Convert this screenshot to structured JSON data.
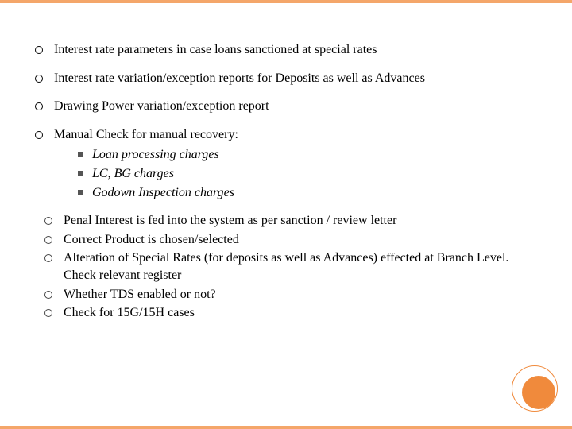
{
  "accent_color": "#f4a66a",
  "accent_fill": "#f08a3c",
  "main_items": [
    {
      "text": "Interest rate parameters in case loans sanctioned at special rates"
    },
    {
      "text": "Interest rate variation/exception reports for Deposits as well as Advances"
    },
    {
      "text": "Drawing Power variation/exception report"
    },
    {
      "text": "Manual Check for manual recovery:"
    }
  ],
  "sub_items": [
    {
      "text": "Loan processing charges"
    },
    {
      "text": "LC, BG charges"
    },
    {
      "text": "Godown Inspection charges"
    }
  ],
  "secondary_items": [
    {
      "text": "Penal Interest is fed into the system as per sanction / review letter"
    },
    {
      "text": "Correct Product is chosen/selected"
    },
    {
      "text": "Alteration of Special Rates (for deposits as well as Advances) effected at Branch Level. Check relevant register"
    },
    {
      "text": "Whether TDS enabled or not?"
    },
    {
      "text": "Check for 15G/15H cases"
    }
  ]
}
